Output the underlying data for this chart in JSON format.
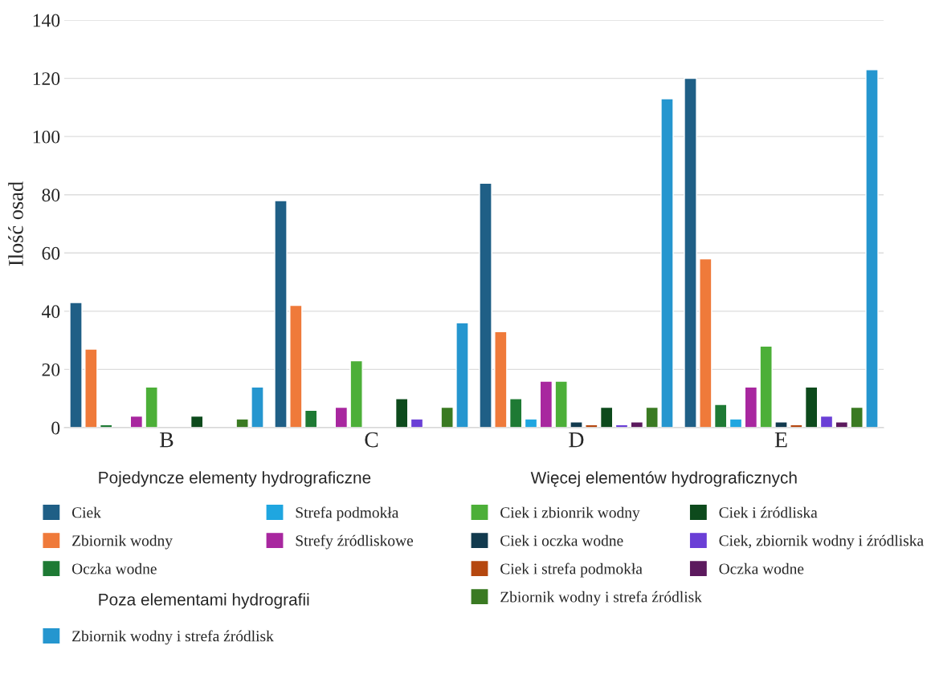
{
  "chart_data": {
    "type": "bar",
    "ylabel": "Ilość osad",
    "categories": [
      "B",
      "C",
      "D",
      "E"
    ],
    "ylim": [
      0,
      140
    ],
    "yticks": [
      0,
      20,
      40,
      60,
      80,
      100,
      120,
      140
    ],
    "grid": "y",
    "legend": "bottom",
    "annotations": [
      "Pojedyncze elementy hydrograficzne",
      "Więcej elementów hydrograficznych",
      "Poza elementami hydrografii"
    ],
    "series": [
      {
        "name": "Ciek",
        "color": "#1f5f86",
        "values": [
          43,
          78,
          84,
          120
        ]
      },
      {
        "name": "Zbiornik wodny",
        "color": "#ef7a3a",
        "values": [
          27,
          42,
          33,
          58
        ]
      },
      {
        "name": "Oczka wodne",
        "color": "#1e7a34",
        "values": [
          1,
          6,
          10,
          8
        ]
      },
      {
        "name": "Strefa podmokła",
        "color": "#1fa6e0",
        "values": [
          null,
          null,
          3,
          3
        ]
      },
      {
        "name": "Strefy źródliskowe",
        "color": "#a8279f",
        "values": [
          4,
          7,
          16,
          14
        ]
      },
      {
        "name": "Ciek i zbionrik wodny",
        "color": "#4caf38",
        "values": [
          14,
          23,
          16,
          28
        ]
      },
      {
        "name": "Ciek i oczka wodne",
        "color": "#123a4e",
        "values": [
          null,
          null,
          2,
          2
        ]
      },
      {
        "name": "Ciek i strefa podmokła",
        "color": "#b5470f",
        "values": [
          null,
          null,
          1,
          1
        ]
      },
      {
        "name": "Ciek i źródliska",
        "color": "#0d4a1c",
        "values": [
          4,
          10,
          7,
          14
        ]
      },
      {
        "name": "Ciek, zbiornik wodny i źródliska",
        "color": "#6a3fd6",
        "values": [
          null,
          3,
          1,
          4
        ]
      },
      {
        "name": "Oczka wodne",
        "color": "#5c1a5e",
        "values": [
          null,
          null,
          2,
          2
        ]
      },
      {
        "name": "Zbiornik wodny i strefa źródlisk",
        "color": "#3a7a22",
        "values": [
          3,
          7,
          7,
          7
        ]
      },
      {
        "name": "Zbiornik wodny i strefa źródlisk",
        "color": "#2596cf",
        "values": [
          14,
          36,
          113,
          123
        ]
      }
    ]
  }
}
